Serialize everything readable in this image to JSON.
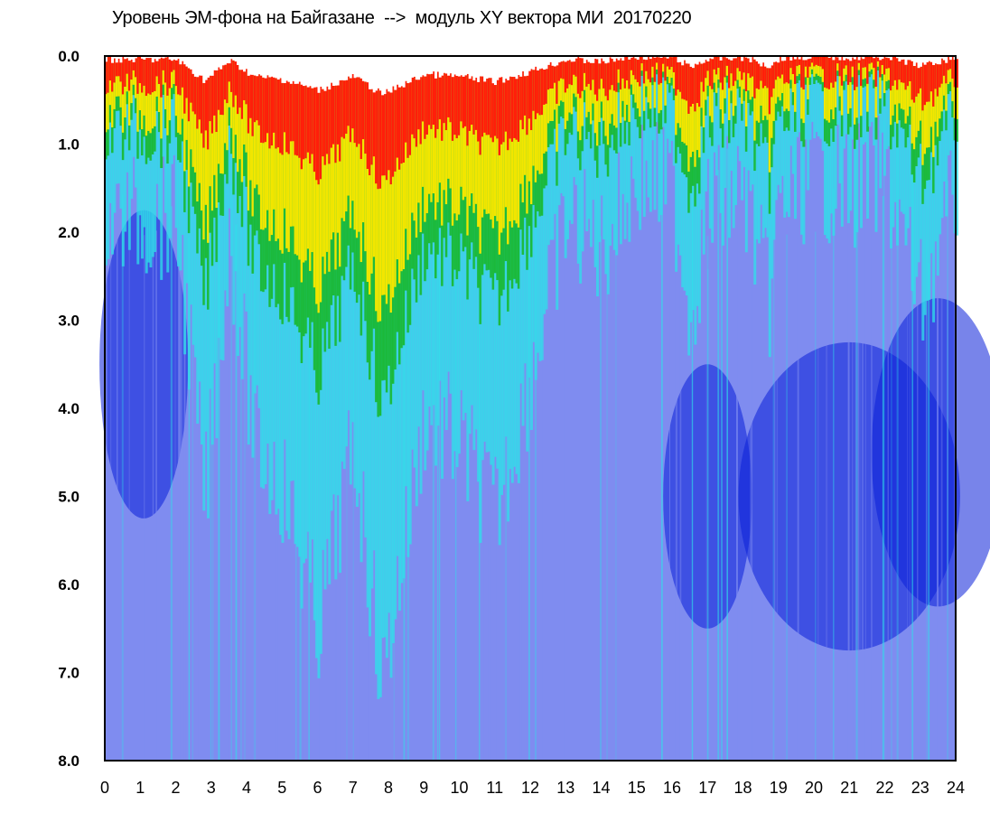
{
  "chart_data": {
    "type": "heatmap",
    "title": "Уровень ЭМ-фона на Байгазане  -->  модуль XY вектора МИ  20170220",
    "x_ticks": [
      "0",
      "1",
      "2",
      "3",
      "4",
      "5",
      "6",
      "7",
      "8",
      "9",
      "10",
      "11",
      "12",
      "13",
      "14",
      "15",
      "16",
      "17",
      "18",
      "19",
      "20",
      "21",
      "22",
      "23",
      "24"
    ],
    "y_ticks": [
      "0.0",
      "1.0",
      "2.0",
      "3.0",
      "4.0",
      "5.0",
      "6.0",
      "7.0",
      "8.0"
    ],
    "xlim": [
      0,
      24
    ],
    "ylim": [
      0,
      8
    ],
    "y_inverted": true,
    "colorscale": [
      "#0a1fd8",
      "#7f8cf0",
      "#2fe0ea",
      "#14b414",
      "#f2e600",
      "#ff1e0a"
    ],
    "level_profile": [
      {
        "hour": 0,
        "top": 0.9
      },
      {
        "hour": 1,
        "top": 0.9
      },
      {
        "hour": 2,
        "top": 0.9
      },
      {
        "hour": 2.8,
        "top": 2.9
      },
      {
        "hour": 3.5,
        "top": 1.0
      },
      {
        "hour": 4.2,
        "top": 2.5
      },
      {
        "hour": 5,
        "top": 2.8
      },
      {
        "hour": 6,
        "top": 3.8
      },
      {
        "hour": 7,
        "top": 2.5
      },
      {
        "hour": 7.8,
        "top": 4.2
      },
      {
        "hour": 9,
        "top": 2.3
      },
      {
        "hour": 10,
        "top": 2.5
      },
      {
        "hour": 11,
        "top": 3.0
      },
      {
        "hour": 12,
        "top": 2.0
      },
      {
        "hour": 13,
        "top": 0.9
      },
      {
        "hour": 14,
        "top": 1.1
      },
      {
        "hour": 15,
        "top": 0.6
      },
      {
        "hour": 16,
        "top": 0.7
      },
      {
        "hour": 16.5,
        "top": 1.6
      },
      {
        "hour": 17,
        "top": 0.8
      },
      {
        "hour": 18,
        "top": 0.7
      },
      {
        "hour": 18.7,
        "top": 1.5
      },
      {
        "hour": 19,
        "top": 0.8
      },
      {
        "hour": 20,
        "top": 0.6
      },
      {
        "hour": 21,
        "top": 0.7
      },
      {
        "hour": 22,
        "top": 0.6
      },
      {
        "hour": 23,
        "top": 1.5
      },
      {
        "hour": 24,
        "top": 0.7
      }
    ]
  }
}
